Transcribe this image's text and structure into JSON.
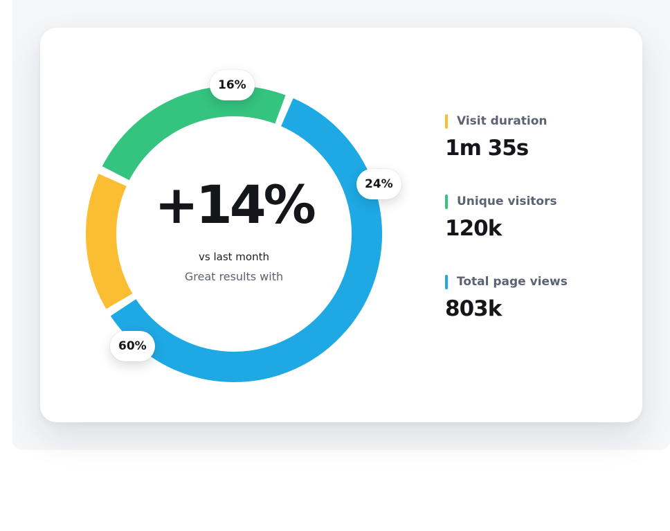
{
  "chart_data": {
    "type": "pie",
    "variant": "donut",
    "slices": [
      {
        "label": "16%",
        "value": 16,
        "color": "#fbbd32"
      },
      {
        "label": "24%",
        "value": 24,
        "color": "#34c47f"
      },
      {
        "label": "60%",
        "value": 60,
        "color": "#1ea9e4"
      }
    ],
    "center_value": "+14%",
    "center_subtitle": "vs last month",
    "center_caption": "Great results with"
  },
  "metrics": [
    {
      "label": "Visit duration",
      "value": "1m 35s",
      "color": "#fbbd32"
    },
    {
      "label": "Unique visitors",
      "value": "120k",
      "color": "#34c47f"
    },
    {
      "label": "Total page views",
      "value": "803k",
      "color": "#1ea9e4"
    }
  ]
}
